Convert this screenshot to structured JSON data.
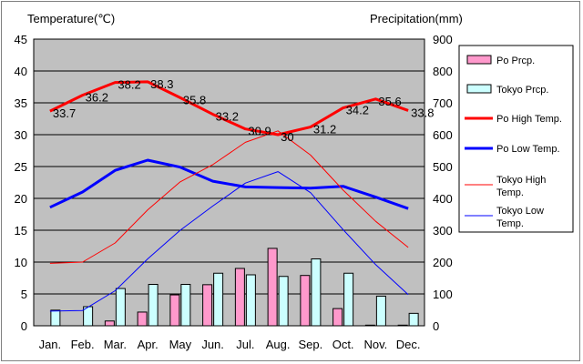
{
  "chart_data": {
    "type": "bar",
    "left_axis_title": "Temperature(℃)",
    "right_axis_title": "Precipitation(mm)",
    "categories": [
      "Jan.",
      "Feb.",
      "Mar.",
      "Apr.",
      "May",
      "Jun.",
      "Jul.",
      "Aug.",
      "Sep.",
      "Oct.",
      "Nov.",
      "Dec."
    ],
    "ylim_left": [
      0,
      45
    ],
    "yticks_left": [
      "0",
      "5",
      "10",
      "15",
      "20",
      "25",
      "30",
      "35",
      "40",
      "45"
    ],
    "ylim_right": [
      0,
      900
    ],
    "yticks_right": [
      "0",
      "100",
      "200",
      "300",
      "400",
      "500",
      "600",
      "700",
      "800",
      "900"
    ],
    "grid": true,
    "legend_position": "right",
    "series": [
      {
        "name": "Po Prcp.",
        "kind": "bar",
        "axis": "right",
        "color": "#ff99cc",
        "values": [
          0,
          0,
          15,
          43,
          97,
          129,
          180,
          243,
          158,
          54,
          2,
          2
        ]
      },
      {
        "name": "Tokyo Prcp.",
        "kind": "bar",
        "axis": "right",
        "color": "#ccffff",
        "values": [
          49,
          60,
          117,
          130,
          130,
          165,
          160,
          155,
          210,
          165,
          93,
          39
        ]
      },
      {
        "name": "Po High Temp.",
        "kind": "line",
        "axis": "left",
        "color": "#ff0000",
        "width": 3,
        "values": [
          33.7,
          36.2,
          38.2,
          38.3,
          35.8,
          33.2,
          30.9,
          30,
          31.2,
          34.2,
          35.6,
          33.8
        ],
        "labels": [
          "33.7",
          "36.2",
          "38.2",
          "38.3",
          "35.8",
          "33.2",
          "30.9",
          "30",
          "31.2",
          "34.2",
          "35.6",
          "33.8"
        ]
      },
      {
        "name": "Po Low Temp.",
        "kind": "line",
        "axis": "left",
        "color": "#0000ff",
        "width": 3,
        "values": [
          18.6,
          21.0,
          24.4,
          26.0,
          24.9,
          22.7,
          21.8,
          21.7,
          21.6,
          21.9,
          20.2,
          18.4
        ]
      },
      {
        "name": "Tokyo High Temp.",
        "kind": "line",
        "axis": "left",
        "color": "#ff0000",
        "width": 1,
        "values": [
          9.8,
          10.0,
          13.0,
          18.2,
          22.6,
          25.3,
          28.8,
          30.6,
          26.8,
          21.3,
          16.4,
          12.3
        ]
      },
      {
        "name": "Tokyo Low Temp.",
        "kind": "line",
        "axis": "left",
        "color": "#0000ff",
        "width": 1,
        "values": [
          2.3,
          2.4,
          5.5,
          10.5,
          15.0,
          18.8,
          22.4,
          24.2,
          20.9,
          15.1,
          9.6,
          4.9
        ]
      }
    ]
  }
}
